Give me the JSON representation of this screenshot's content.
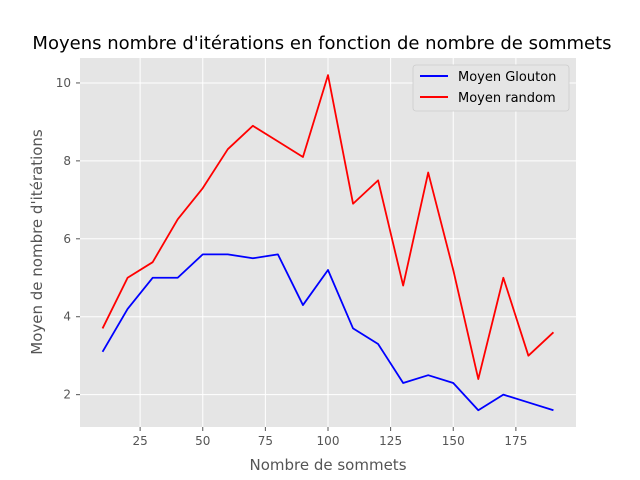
{
  "chart_data": {
    "type": "line",
    "title": "Moyens nombre d'itérations en fonction de nombre de sommets",
    "xlabel": "Nombre de sommets",
    "ylabel": "Moyen de nombre d'itérations",
    "xlim": [
      1,
      199
    ],
    "ylim": [
      1.17,
      10.64
    ],
    "xticks": [
      25,
      50,
      75,
      100,
      125,
      150,
      175
    ],
    "yticks": [
      2,
      4,
      6,
      8,
      10
    ],
    "grid": true,
    "legend_position": "top-right",
    "x": [
      10,
      20,
      30,
      40,
      50,
      60,
      70,
      80,
      90,
      100,
      110,
      120,
      130,
      140,
      150,
      160,
      170,
      180,
      190
    ],
    "series": [
      {
        "name": "Moyen Glouton",
        "color": "#0000ff",
        "values": [
          3.1,
          4.2,
          5.0,
          5.0,
          5.6,
          5.6,
          5.5,
          5.6,
          4.3,
          5.2,
          3.7,
          3.3,
          2.3,
          2.5,
          2.3,
          1.6,
          2.0,
          1.8,
          1.6
        ]
      },
      {
        "name": "Moyen random",
        "color": "#ff0000",
        "values": [
          3.7,
          5.0,
          5.4,
          6.5,
          7.3,
          8.3,
          8.9,
          8.5,
          8.1,
          10.2,
          6.9,
          7.5,
          4.8,
          7.7,
          5.2,
          2.4,
          5.0,
          3.0,
          3.6
        ]
      }
    ]
  }
}
